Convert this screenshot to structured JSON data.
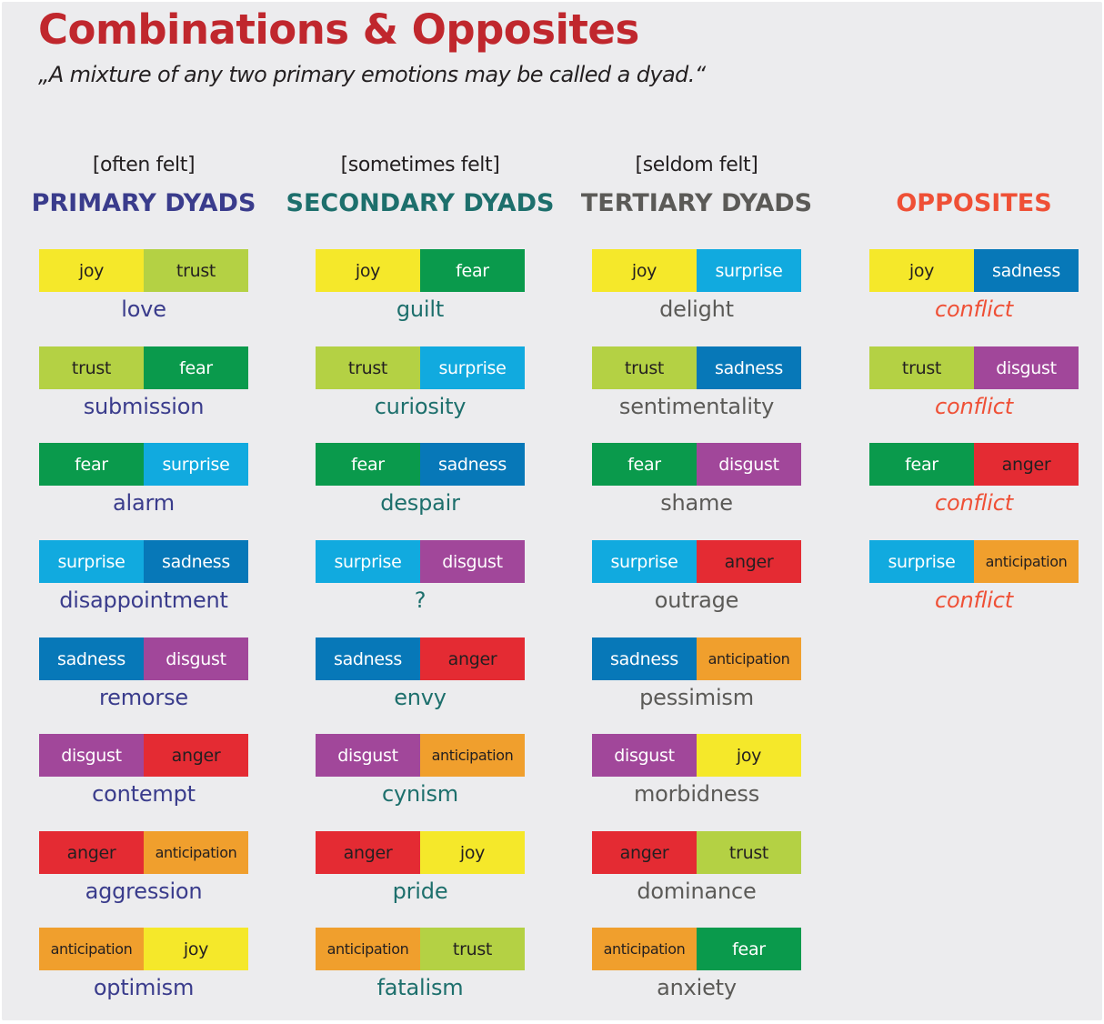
{
  "title": "Combinations & Opposites",
  "subtitle": "„A mixture of any two primary emotions may be called a dyad.“",
  "emotion_colors": {
    "joy": {
      "bg": "#f5e82a",
      "fg": "#231f20"
    },
    "trust": {
      "bg": "#b4d144",
      "fg": "#231f20"
    },
    "fear": {
      "bg": "#0a9a4c",
      "fg": "#ffffff"
    },
    "surprise": {
      "bg": "#11aadf",
      "fg": "#ffffff"
    },
    "sadness": {
      "bg": "#0778b8",
      "fg": "#ffffff"
    },
    "disgust": {
      "bg": "#a1479a",
      "fg": "#ffffff"
    },
    "anger": {
      "bg": "#e42b33",
      "fg": "#231f20"
    },
    "anticipation": {
      "bg": "#f09f2d",
      "fg": "#231f20"
    }
  },
  "columns": [
    {
      "frequency": "[often felt]",
      "title": "PRIMARY DYADS",
      "title_color": "#3a3c8c",
      "result_color": "#3a3c8c",
      "result_italic": false,
      "dyads": [
        {
          "pair": [
            "joy",
            "trust"
          ],
          "result": "love"
        },
        {
          "pair": [
            "trust",
            "fear"
          ],
          "result": "submission"
        },
        {
          "pair": [
            "fear",
            "surprise"
          ],
          "result": "alarm"
        },
        {
          "pair": [
            "surprise",
            "sadness"
          ],
          "result": "disappointment"
        },
        {
          "pair": [
            "sadness",
            "disgust"
          ],
          "result": "remorse"
        },
        {
          "pair": [
            "disgust",
            "anger"
          ],
          "result": "contempt"
        },
        {
          "pair": [
            "anger",
            "anticipation"
          ],
          "result": "aggression"
        },
        {
          "pair": [
            "anticipation",
            "joy"
          ],
          "result": "optimism"
        }
      ]
    },
    {
      "frequency": "[sometimes felt]",
      "title": "SECONDARY DYADS",
      "title_color": "#1d6f6c",
      "result_color": "#1d6f6c",
      "result_italic": false,
      "dyads": [
        {
          "pair": [
            "joy",
            "fear"
          ],
          "result": "guilt"
        },
        {
          "pair": [
            "trust",
            "surprise"
          ],
          "result": "curiosity"
        },
        {
          "pair": [
            "fear",
            "sadness"
          ],
          "result": "despair"
        },
        {
          "pair": [
            "surprise",
            "disgust"
          ],
          "result": "?"
        },
        {
          "pair": [
            "sadness",
            "anger"
          ],
          "result": "envy"
        },
        {
          "pair": [
            "disgust",
            "anticipation"
          ],
          "result": "cynism"
        },
        {
          "pair": [
            "anger",
            "joy"
          ],
          "result": "pride"
        },
        {
          "pair": [
            "anticipation",
            "trust"
          ],
          "result": "fatalism"
        }
      ]
    },
    {
      "frequency": "[seldom felt]",
      "title": "TERTIARY DYADS",
      "title_color": "#5b5a57",
      "result_color": "#5b5a57",
      "result_italic": false,
      "dyads": [
        {
          "pair": [
            "joy",
            "surprise"
          ],
          "result": "delight"
        },
        {
          "pair": [
            "trust",
            "sadness"
          ],
          "result": "sentimentality"
        },
        {
          "pair": [
            "fear",
            "disgust"
          ],
          "result": "shame"
        },
        {
          "pair": [
            "surprise",
            "anger"
          ],
          "result": "outrage"
        },
        {
          "pair": [
            "sadness",
            "anticipation"
          ],
          "result": "pessimism"
        },
        {
          "pair": [
            "disgust",
            "joy"
          ],
          "result": "morbidness"
        },
        {
          "pair": [
            "anger",
            "trust"
          ],
          "result": "dominance"
        },
        {
          "pair": [
            "anticipation",
            "fear"
          ],
          "result": "anxiety"
        }
      ]
    },
    {
      "frequency": "",
      "title": "OPPOSITES",
      "title_color": "#ef5036",
      "result_color": "#ef5036",
      "result_italic": true,
      "dyads": [
        {
          "pair": [
            "joy",
            "sadness"
          ],
          "result": "conflict"
        },
        {
          "pair": [
            "trust",
            "disgust"
          ],
          "result": "conflict"
        },
        {
          "pair": [
            "fear",
            "anger"
          ],
          "result": "conflict"
        },
        {
          "pair": [
            "surprise",
            "anticipation"
          ],
          "result": "conflict"
        }
      ]
    }
  ]
}
